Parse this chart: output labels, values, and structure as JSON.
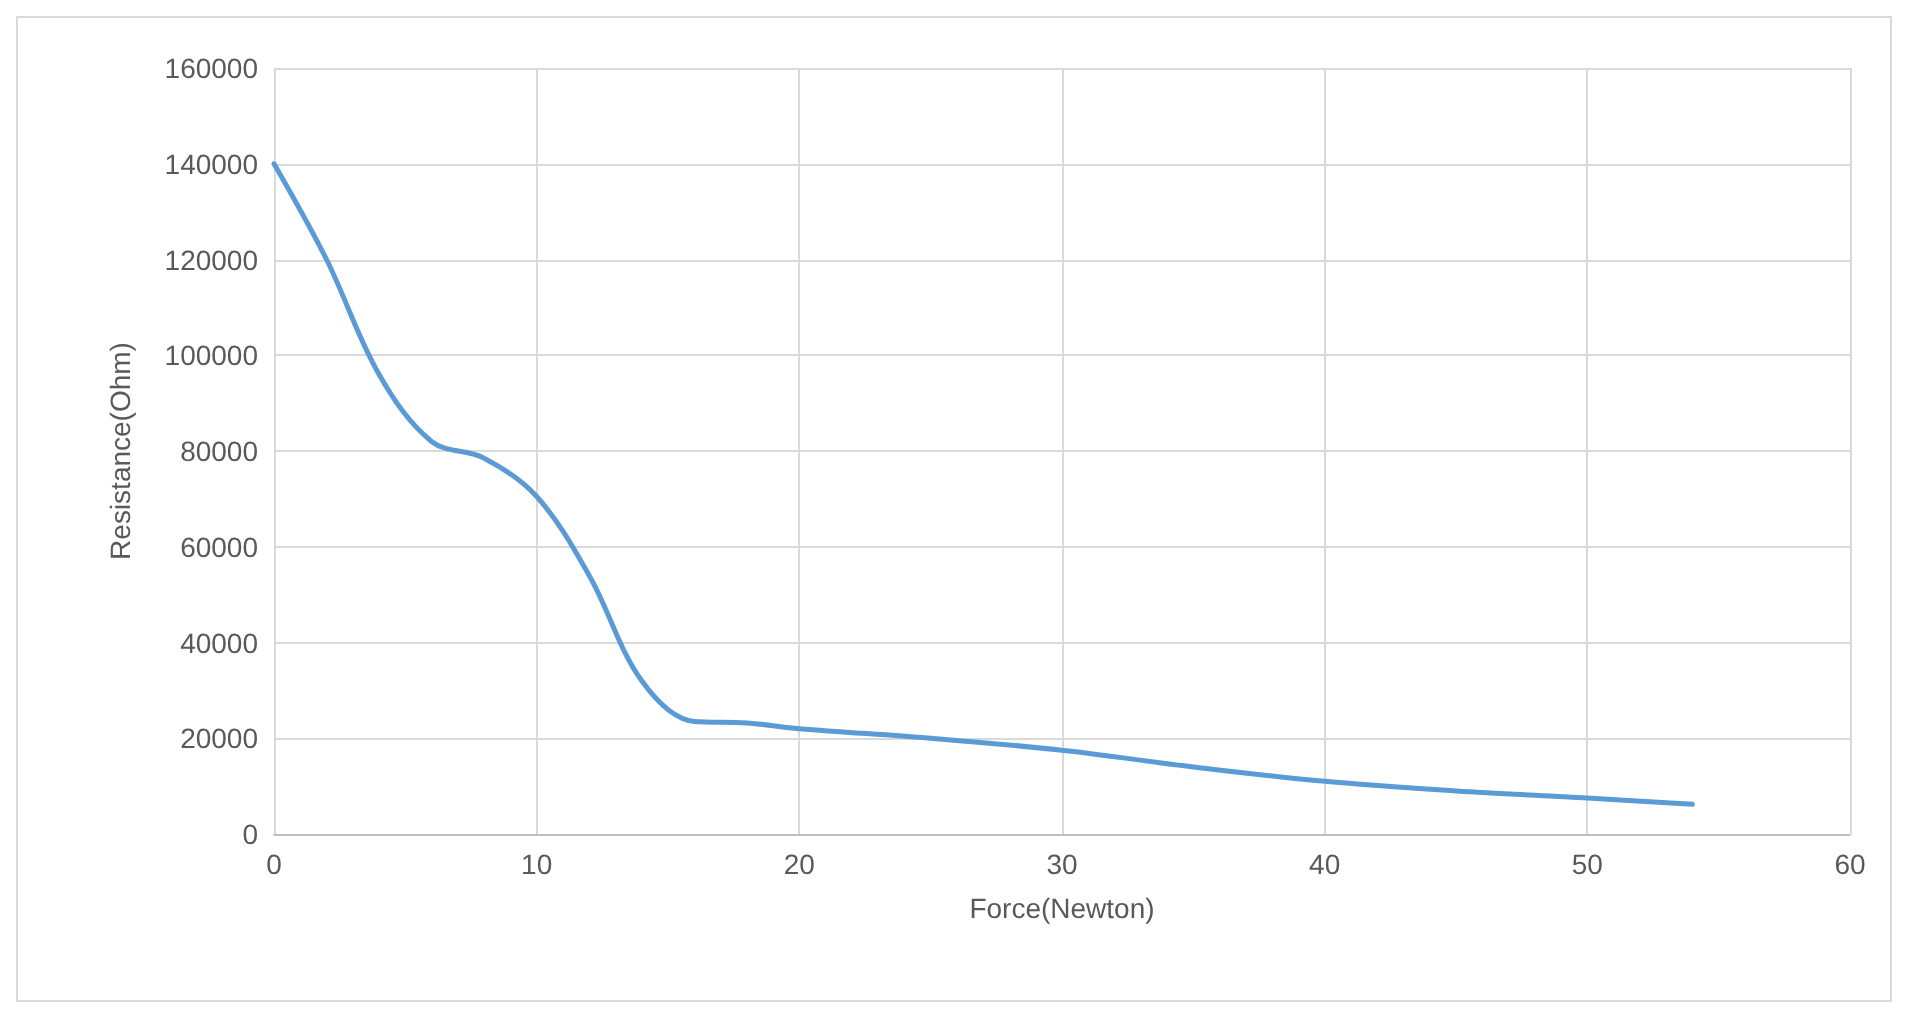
{
  "chart_data": {
    "type": "line",
    "xlabel": "Force(Newton)",
    "ylabel": "Resistance(Ohm)",
    "x": [
      0,
      2,
      4,
      6,
      8,
      10,
      12,
      14,
      16,
      18,
      20,
      25,
      30,
      35,
      40,
      45,
      50,
      54
    ],
    "series": [
      {
        "color": "#5b9bd5",
        "values": [
          140000,
          120000,
          96000,
          82000,
          78500,
          70500,
          54000,
          32000,
          23500,
          23200,
          22000,
          20000,
          17500,
          14000,
          11000,
          9000,
          7500,
          6200
        ]
      }
    ],
    "xlim": [
      0,
      60
    ],
    "xticks": [
      0,
      10,
      20,
      30,
      40,
      50,
      60
    ],
    "ylim": [
      0,
      160000
    ],
    "yticks": [
      0,
      20000,
      40000,
      60000,
      80000,
      100000,
      120000,
      140000,
      160000
    ],
    "grid": true,
    "marker": "none",
    "line_style": "solid"
  }
}
